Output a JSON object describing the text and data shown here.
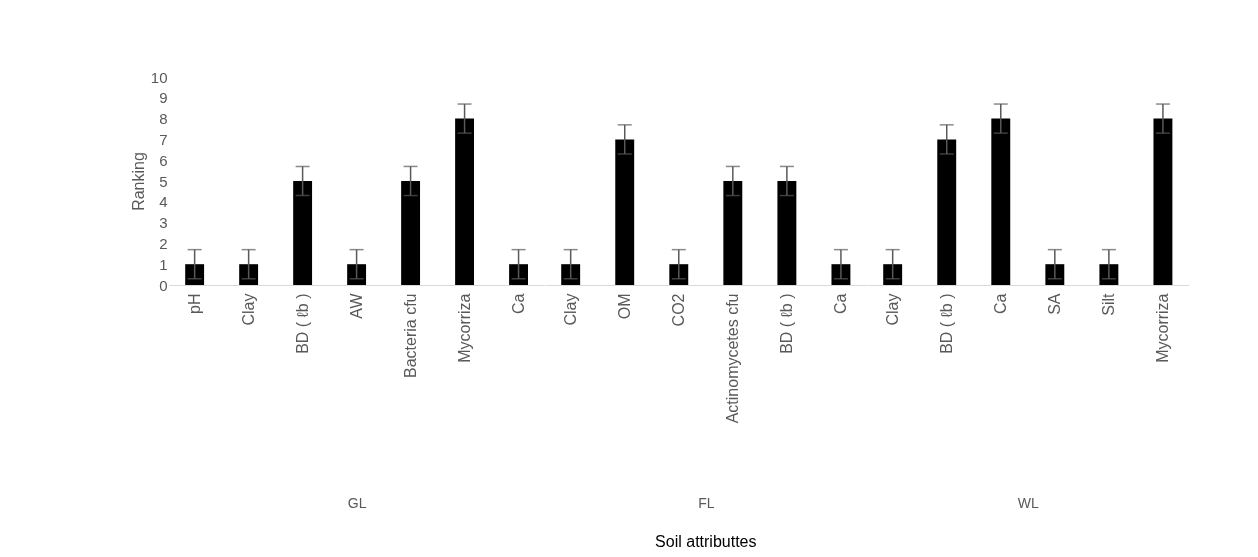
{
  "chart_data": [
    {
      "type": "bar",
      "xlabel": "GL",
      "ylabel": "Ranking",
      "categories": [
        "pH",
        "Clay",
        "BD ( ℓb )",
        "AW",
        "Bacteria cfu",
        "Mycorriza",
        "Ca"
      ],
      "values": [
        1,
        1,
        5,
        1,
        5,
        8,
        1
      ],
      "errors": [
        0.7,
        0.7,
        0.7,
        0.7,
        0.7,
        0.7,
        0.7
      ],
      "color": "#000000",
      "ylim": [
        0,
        10
      ],
      "yticks": [
        0,
        1,
        2,
        3,
        4,
        5,
        6,
        7,
        8,
        9,
        10
      ],
      "grid": false
    },
    {
      "type": "bar",
      "xlabel": "FL",
      "annotations": [
        "Soil attributtes"
      ],
      "categories": [
        "Clay",
        "OM",
        "CO2",
        "Actinomycetes cfu",
        "BD ( ℓb )",
        "Ca"
      ],
      "values": [
        1,
        7,
        1,
        5,
        5,
        1
      ],
      "errors": [
        0.7,
        0.7,
        0.7,
        0.7,
        0.7,
        0.7
      ],
      "color": "#000000",
      "ylim": [
        0,
        10
      ],
      "tick_labels": "x"
    },
    {
      "type": "bar",
      "xlabel": "WL",
      "categories": [
        "Clay",
        "BD ( ℓb )",
        "Ca",
        "SA",
        "Silt",
        "Mycorriza"
      ],
      "values": [
        1,
        7,
        8,
        1,
        1,
        8
      ],
      "errors": [
        0.7,
        0.7,
        0.7,
        0.7,
        0.7,
        0.7
      ],
      "color": "#000000",
      "ylim": [
        0,
        10
      ],
      "tick_labels": "x"
    }
  ]
}
